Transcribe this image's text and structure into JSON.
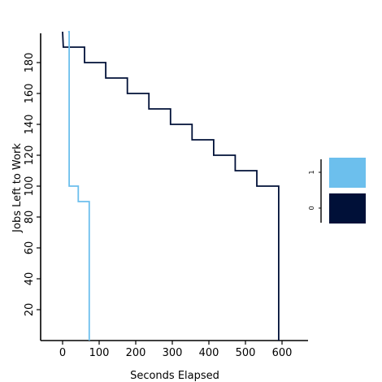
{
  "chart_data": {
    "type": "line",
    "title": "",
    "xlabel": "Seconds Elapsed",
    "ylabel": "Jobs Left to Work",
    "xlim": [
      -60,
      670
    ],
    "ylim": [
      0,
      200
    ],
    "xticks": [
      0,
      100,
      200,
      300,
      400,
      500,
      600
    ],
    "yticks": [
      20,
      40,
      60,
      80,
      100,
      120,
      140,
      160,
      180
    ],
    "step": true,
    "legend_position": "right",
    "legend_style": "colorbar",
    "series": [
      {
        "name": "0",
        "color": "#001038",
        "x": [
          0,
          2,
          60,
          60,
          118,
          118,
          177,
          177,
          236,
          236,
          295,
          295,
          354,
          354,
          413,
          413,
          472,
          472,
          531,
          531,
          591,
          591
        ],
        "y": [
          200,
          190,
          190,
          180,
          180,
          170,
          170,
          160,
          160,
          150,
          150,
          140,
          140,
          130,
          130,
          120,
          120,
          110,
          110,
          100,
          100,
          0
        ]
      },
      {
        "name": "1",
        "color": "#6cbfed",
        "x": [
          15,
          18,
          18,
          43,
          43,
          73,
          73
        ],
        "y": [
          200,
          200,
          100,
          100,
          90,
          90,
          0
        ]
      }
    ]
  }
}
